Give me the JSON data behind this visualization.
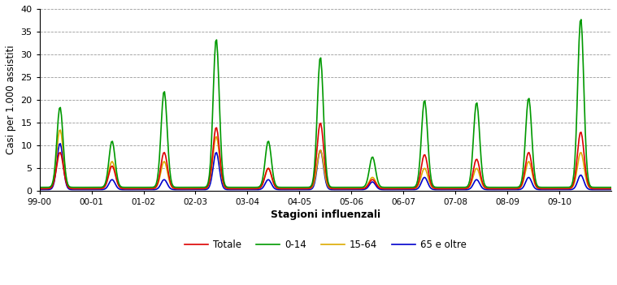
{
  "xlabel": "Stagioni influenzali",
  "ylabel": "Casi per 1.000 assistiti",
  "ylim": [
    0,
    40
  ],
  "yticks": [
    0,
    5,
    10,
    15,
    20,
    25,
    30,
    35,
    40
  ],
  "seasons": [
    "99-00",
    "00-01",
    "01-02",
    "02-03",
    "03-04",
    "04-05",
    "05-06",
    "06-07",
    "07-08",
    "08-09",
    "09-10"
  ],
  "colors": {
    "Totale": "#dd0000",
    "0-14": "#009900",
    "15-64": "#ddaa00",
    "65 e oltre": "#0000cc"
  },
  "season_peaks": {
    "Totale": [
      8.5,
      5.5,
      8.5,
      14.0,
      5.0,
      15.0,
      2.5,
      8.0,
      7.0,
      8.5,
      13.0
    ],
    "0-14": [
      18.5,
      11.0,
      22.0,
      33.5,
      11.0,
      29.5,
      7.5,
      20.0,
      19.5,
      20.5,
      38.0
    ],
    "15-64": [
      13.5,
      6.5,
      6.5,
      12.0,
      5.0,
      9.0,
      3.0,
      5.0,
      5.0,
      6.5,
      8.5
    ],
    "65 e oltre": [
      10.5,
      2.5,
      2.5,
      8.5,
      2.5,
      9.0,
      2.0,
      3.0,
      2.5,
      3.0,
      3.5
    ]
  },
  "season_peak_pos": [
    0.4,
    0.4,
    0.4,
    0.4,
    0.4,
    0.4,
    0.4,
    0.4,
    0.4,
    0.4,
    0.4
  ],
  "points_per_season": 50,
  "base_values": {
    "Totale": 0.5,
    "0-14": 0.8,
    "15-64": 0.5,
    "65 e oltre": 0.3
  },
  "spread_values": {
    "Totale": 0.065,
    "0-14": 0.06,
    "15-64": 0.065,
    "65 e oltre": 0.06
  }
}
